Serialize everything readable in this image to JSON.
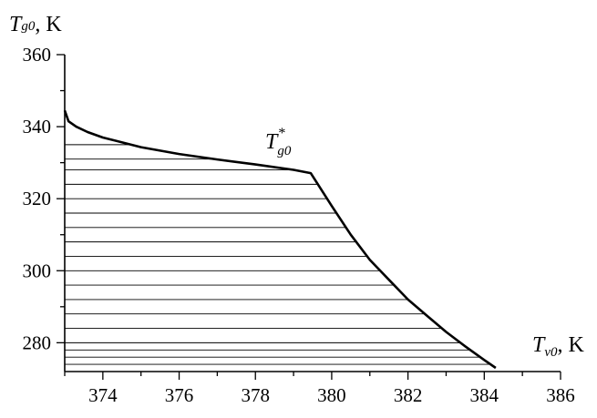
{
  "chart_data": {
    "type": "line",
    "y_axis_label": {
      "symbol": "T",
      "subscript": "g0",
      "unit": ", K"
    },
    "x_axis_label": {
      "symbol": "T",
      "subscript": "v0",
      "unit": ", K"
    },
    "xlim": [
      373,
      386
    ],
    "ylim": [
      272,
      360
    ],
    "x_major_ticks": [
      374,
      376,
      378,
      380,
      382,
      384,
      386
    ],
    "x_minor_ticks": [
      373,
      375,
      377,
      379,
      381,
      383,
      385
    ],
    "y_major_ticks": [
      280,
      300,
      320,
      340,
      360
    ],
    "y_minor_ticks": [
      290,
      310,
      330,
      350
    ],
    "grid": false,
    "series": [
      {
        "x": [
          373.0,
          373.1,
          373.3,
          373.6,
          374.0,
          375.0,
          376.0,
          377.0,
          378.0,
          379.0,
          379.45,
          380.0,
          380.5,
          381.0,
          381.5,
          382.0,
          382.5,
          383.0,
          383.5,
          384.0,
          384.3
        ],
        "y": [
          344.5,
          341.5,
          340.0,
          338.5,
          337.0,
          334.3,
          332.4,
          330.9,
          329.5,
          328.0,
          327.1,
          318.0,
          310.0,
          303.0,
          297.5,
          292.0,
          287.5,
          283.0,
          279.0,
          275.2,
          273.0
        ]
      }
    ],
    "shaded_region": {
      "pattern": "horizontal-lines",
      "hatch_y_values": [
        274,
        276,
        278,
        280,
        284,
        288,
        292,
        296,
        300,
        304,
        308,
        312,
        316,
        320,
        324,
        328,
        331,
        335
      ]
    },
    "annotations": [
      {
        "symbol": "T",
        "subscript": "g0",
        "superscript": "*",
        "x": 379.45,
        "y": 327.1
      }
    ]
  }
}
